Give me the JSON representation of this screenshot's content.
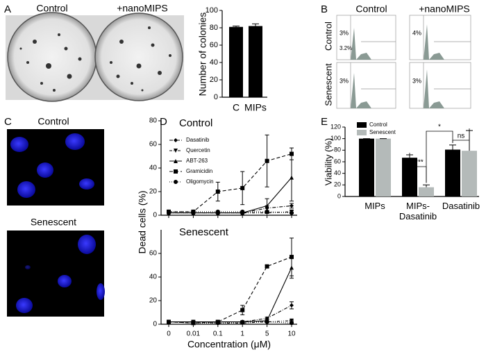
{
  "panel_labels": [
    "A",
    "B",
    "C",
    "D",
    "E"
  ],
  "panel_a": {
    "image_labels": [
      "Control",
      "+nanoMIPS"
    ]
  },
  "panel_b": {
    "column_labels": [
      "Control",
      "+nanoMIPS"
    ],
    "row_labels": [
      "Control",
      "Senescent"
    ],
    "gates": [
      "3%",
      "3.2%",
      "4%",
      "3%",
      "3%"
    ]
  },
  "panel_c": {
    "image_labels": [
      "Control",
      "Senescent"
    ]
  },
  "chart_data": [
    {
      "type": "bar",
      "ylabel": "Number of colonies",
      "categories": [
        "C",
        "MIPs"
      ],
      "values": [
        81,
        82
      ],
      "errors": [
        1,
        2.5
      ],
      "color": "#000000",
      "ylim": [
        0,
        100
      ],
      "yticks": [
        0,
        20,
        40,
        60,
        80,
        100
      ]
    },
    {
      "type": "line",
      "title": "Control",
      "ylabel": "Dead cells (%)",
      "categories": [
        null,
        null,
        null,
        null,
        null,
        null
      ],
      "ylim": [
        0,
        80
      ],
      "yticks": [
        0,
        20,
        40,
        60,
        80
      ],
      "legend": true,
      "series": [
        {
          "name": "Dasatinib",
          "color": "#000000",
          "marker": "diamond",
          "linestyle": "dashdot",
          "values": [
            2,
            2,
            2,
            2,
            6,
            8
          ],
          "errors": [
            0.5,
            0.5,
            0.5,
            0.5,
            2,
            2
          ]
        },
        {
          "name": "Quercetin",
          "color": "#000000",
          "marker": "triangle-down",
          "linestyle": "dashdotdot",
          "values": [
            2,
            2,
            2,
            2,
            2,
            3
          ],
          "errors": [
            0.5,
            0.5,
            0.5,
            0.5,
            0.5,
            1
          ]
        },
        {
          "name": "ABT-263",
          "color": "#000000",
          "marker": "triangle",
          "linestyle": "solid",
          "values": [
            2,
            2,
            2,
            2,
            8,
            32
          ],
          "errors": [
            0.5,
            0.5,
            0.5,
            0.5,
            6,
            20
          ]
        },
        {
          "name": "Gramicidin",
          "color": "#000000",
          "marker": "square",
          "linestyle": "dashed",
          "values": [
            3,
            3,
            20,
            23,
            46,
            52
          ],
          "errors": [
            1,
            1,
            8,
            14,
            22,
            5
          ]
        },
        {
          "name": "Oligomycin",
          "color": "#000000",
          "marker": "circle",
          "linestyle": "dotted",
          "values": [
            3,
            3,
            3,
            3,
            3,
            2
          ],
          "errors": [
            0.5,
            0.5,
            0.5,
            0.5,
            0.5,
            0.5
          ]
        }
      ]
    },
    {
      "type": "line",
      "title": "Senescent",
      "xlabel": "Concentration (μM)",
      "categories": [
        "0",
        "0.01",
        "0.1",
        "1",
        "5",
        "10"
      ],
      "ylim": [
        0,
        80
      ],
      "yticks": [
        0,
        20,
        40,
        60
      ],
      "legend": false,
      "series": [
        {
          "name": "Dasatinib",
          "color": "#000000",
          "marker": "diamond",
          "linestyle": "dashdot",
          "values": [
            2,
            2,
            2,
            2,
            5,
            16
          ],
          "errors": [
            1,
            1,
            1,
            1,
            1,
            3
          ]
        },
        {
          "name": "Quercetin",
          "color": "#000000",
          "marker": "triangle-down",
          "linestyle": "dashdotdot",
          "values": [
            2,
            2,
            1,
            1,
            2,
            3
          ],
          "errors": [
            0.5,
            0.5,
            0.5,
            0.5,
            0.5,
            0.5
          ]
        },
        {
          "name": "ABT-263",
          "color": "#000000",
          "marker": "triangle",
          "linestyle": "solid",
          "values": [
            2,
            2,
            2,
            2,
            3,
            48
          ],
          "errors": [
            0.5,
            0.5,
            0.5,
            0.5,
            1,
            9
          ]
        },
        {
          "name": "Gramicidin",
          "color": "#000000",
          "marker": "square",
          "linestyle": "dashed",
          "values": [
            2,
            1,
            2,
            12,
            49,
            57
          ],
          "errors": [
            1,
            1,
            1,
            4,
            1,
            16
          ]
        },
        {
          "name": "Oligomycin",
          "color": "#000000",
          "marker": "circle",
          "linestyle": "dotted",
          "values": [
            2,
            1,
            1,
            2,
            2,
            1
          ],
          "errors": [
            0.5,
            0.5,
            0.5,
            0.5,
            0.5,
            0.5
          ]
        }
      ]
    },
    {
      "type": "grouped_bar",
      "ylabel": "Viability (%)",
      "categories": [
        "MIPs",
        "MIPs-\nDasatinib",
        "Dasatinib"
      ],
      "ylim": [
        0,
        120
      ],
      "yticks": [
        0,
        20,
        40,
        60,
        80,
        100,
        120
      ],
      "legend": true,
      "series": [
        {
          "name": "Control",
          "color": "#000000",
          "values": [
            100,
            67,
            81
          ],
          "errors": [
            0,
            5,
            8
          ]
        },
        {
          "name": "Senescent",
          "color": "#b4bab9",
          "values": [
            100,
            16,
            79
          ],
          "errors": [
            0,
            4,
            35
          ]
        }
      ],
      "annotations": [
        "****",
        "ns",
        "*"
      ]
    }
  ]
}
